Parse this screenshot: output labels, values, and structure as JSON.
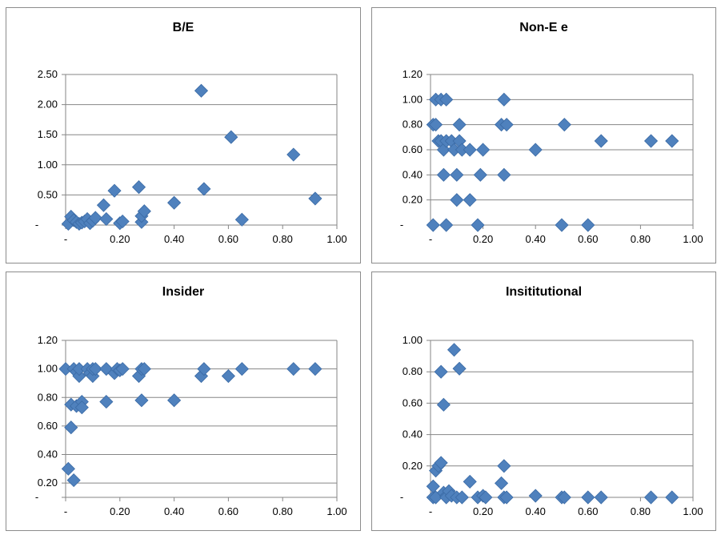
{
  "chart_data": [
    {
      "type": "scatter",
      "title": "B/E",
      "xlim": [
        0,
        1.0
      ],
      "ylim": [
        0,
        2.5
      ],
      "x_ticks": [
        0,
        0.2,
        0.4,
        0.6,
        0.8,
        1.0
      ],
      "x_tick_labels": [
        "-",
        "0.20",
        "0.40",
        "0.60",
        "0.80",
        "1.00"
      ],
      "y_ticks": [
        0,
        0.5,
        1.0,
        1.5,
        2.0,
        2.5
      ],
      "y_tick_labels": [
        "-",
        "0.50",
        "1.00",
        "1.50",
        "2.00",
        "2.50"
      ],
      "grid": true,
      "marker_color": "#4f81bd",
      "x": [
        0.01,
        0.02,
        0.03,
        0.04,
        0.05,
        0.06,
        0.07,
        0.08,
        0.09,
        0.1,
        0.11,
        0.14,
        0.15,
        0.18,
        0.2,
        0.21,
        0.27,
        0.28,
        0.28,
        0.29,
        0.4,
        0.5,
        0.51,
        0.61,
        0.65,
        0.84,
        0.92
      ],
      "y": [
        0.02,
        0.14,
        0.08,
        0.05,
        0.02,
        0.04,
        0.06,
        0.1,
        0.03,
        0.07,
        0.12,
        0.33,
        0.1,
        0.57,
        0.03,
        0.06,
        0.63,
        0.05,
        0.15,
        0.23,
        0.37,
        2.23,
        0.6,
        1.46,
        0.09,
        1.17,
        0.44
      ]
    },
    {
      "type": "scatter",
      "title": "Non-E e",
      "xlim": [
        0,
        1.0
      ],
      "ylim": [
        0,
        1.2
      ],
      "x_ticks": [
        0,
        0.2,
        0.4,
        0.6,
        0.8,
        1.0
      ],
      "x_tick_labels": [
        "-",
        "0.20",
        "0.40",
        "0.60",
        "0.80",
        "1.00"
      ],
      "y_ticks": [
        0,
        0.2,
        0.4,
        0.6,
        0.8,
        1.0,
        1.2
      ],
      "y_tick_labels": [
        "-",
        "0.20",
        "0.40",
        "0.60",
        "0.80",
        "1.00",
        "1.20"
      ],
      "grid": true,
      "marker_color": "#4f81bd",
      "x": [
        0.01,
        0.01,
        0.02,
        0.02,
        0.03,
        0.04,
        0.04,
        0.05,
        0.05,
        0.06,
        0.06,
        0.06,
        0.08,
        0.09,
        0.1,
        0.1,
        0.11,
        0.11,
        0.12,
        0.15,
        0.15,
        0.18,
        0.19,
        0.2,
        0.27,
        0.28,
        0.28,
        0.29,
        0.4,
        0.5,
        0.51,
        0.6,
        0.65,
        0.84,
        0.92
      ],
      "y": [
        0.0,
        0.8,
        1.0,
        0.8,
        0.67,
        1.0,
        0.67,
        0.6,
        0.4,
        1.0,
        0.67,
        0.0,
        0.67,
        0.6,
        0.4,
        0.2,
        0.67,
        0.8,
        0.6,
        0.2,
        0.6,
        0.0,
        0.4,
        0.6,
        0.8,
        1.0,
        0.4,
        0.8,
        0.6,
        0.0,
        0.8,
        0.0,
        0.67,
        0.67,
        0.67
      ]
    },
    {
      "type": "scatter",
      "title": "Insider",
      "xlim": [
        0,
        1.0
      ],
      "ylim": [
        0.1,
        1.2
      ],
      "x_ticks": [
        0,
        0.2,
        0.4,
        0.6,
        0.8,
        1.0
      ],
      "x_tick_labels": [
        "-",
        "0.20",
        "0.40",
        "0.60",
        "0.80",
        "1.00"
      ],
      "y_ticks": [
        0.2,
        0.4,
        0.6,
        0.8,
        1.0,
        1.2
      ],
      "y_tick_labels": [
        "0.20",
        "0.40",
        "0.60",
        "0.80",
        "1.00",
        "1.20"
      ],
      "bottom_gridline_label": "-",
      "grid": true,
      "marker_color": "#4f81bd",
      "x": [
        0.0,
        0.01,
        0.02,
        0.02,
        0.03,
        0.03,
        0.04,
        0.04,
        0.05,
        0.05,
        0.06,
        0.06,
        0.08,
        0.09,
        0.1,
        0.1,
        0.11,
        0.15,
        0.15,
        0.18,
        0.19,
        0.2,
        0.21,
        0.27,
        0.28,
        0.28,
        0.29,
        0.4,
        0.5,
        0.51,
        0.6,
        0.65,
        0.84,
        0.92
      ],
      "y": [
        1.0,
        0.3,
        0.59,
        0.75,
        0.22,
        1.0,
        0.98,
        0.74,
        0.95,
        1.0,
        0.77,
        0.73,
        1.0,
        0.97,
        0.95,
        1.0,
        1.0,
        0.77,
        1.0,
        0.97,
        1.0,
        0.99,
        1.0,
        0.95,
        1.0,
        0.78,
        1.0,
        0.78,
        0.95,
        1.0,
        0.95,
        1.0,
        1.0,
        1.0
      ]
    },
    {
      "type": "scatter",
      "title": "Insititutional",
      "xlim": [
        0,
        1.0
      ],
      "ylim": [
        0,
        1.0
      ],
      "x_ticks": [
        0,
        0.2,
        0.4,
        0.6,
        0.8,
        1.0
      ],
      "x_tick_labels": [
        "-",
        "0.20",
        "0.40",
        "0.60",
        "0.80",
        "1.00"
      ],
      "y_ticks": [
        0,
        0.2,
        0.4,
        0.6,
        0.8,
        1.0
      ],
      "y_tick_labels": [
        "-",
        "0.20",
        "0.40",
        "0.60",
        "0.80",
        "1.00"
      ],
      "grid": true,
      "marker_color": "#4f81bd",
      "x": [
        0.01,
        0.01,
        0.02,
        0.02,
        0.03,
        0.04,
        0.04,
        0.05,
        0.05,
        0.06,
        0.06,
        0.07,
        0.08,
        0.09,
        0.1,
        0.11,
        0.12,
        0.15,
        0.18,
        0.2,
        0.21,
        0.27,
        0.28,
        0.28,
        0.29,
        0.4,
        0.5,
        0.51,
        0.6,
        0.65,
        0.84,
        0.92
      ],
      "y": [
        0.0,
        0.07,
        0.17,
        0.0,
        0.2,
        0.22,
        0.8,
        0.59,
        0.03,
        0.01,
        0.0,
        0.04,
        0.01,
        0.94,
        0.0,
        0.82,
        0.0,
        0.1,
        0.0,
        0.01,
        0.0,
        0.09,
        0.2,
        0.0,
        0.0,
        0.01,
        0.0,
        0.0,
        0.0,
        0.0,
        0.0,
        0.0
      ]
    }
  ]
}
